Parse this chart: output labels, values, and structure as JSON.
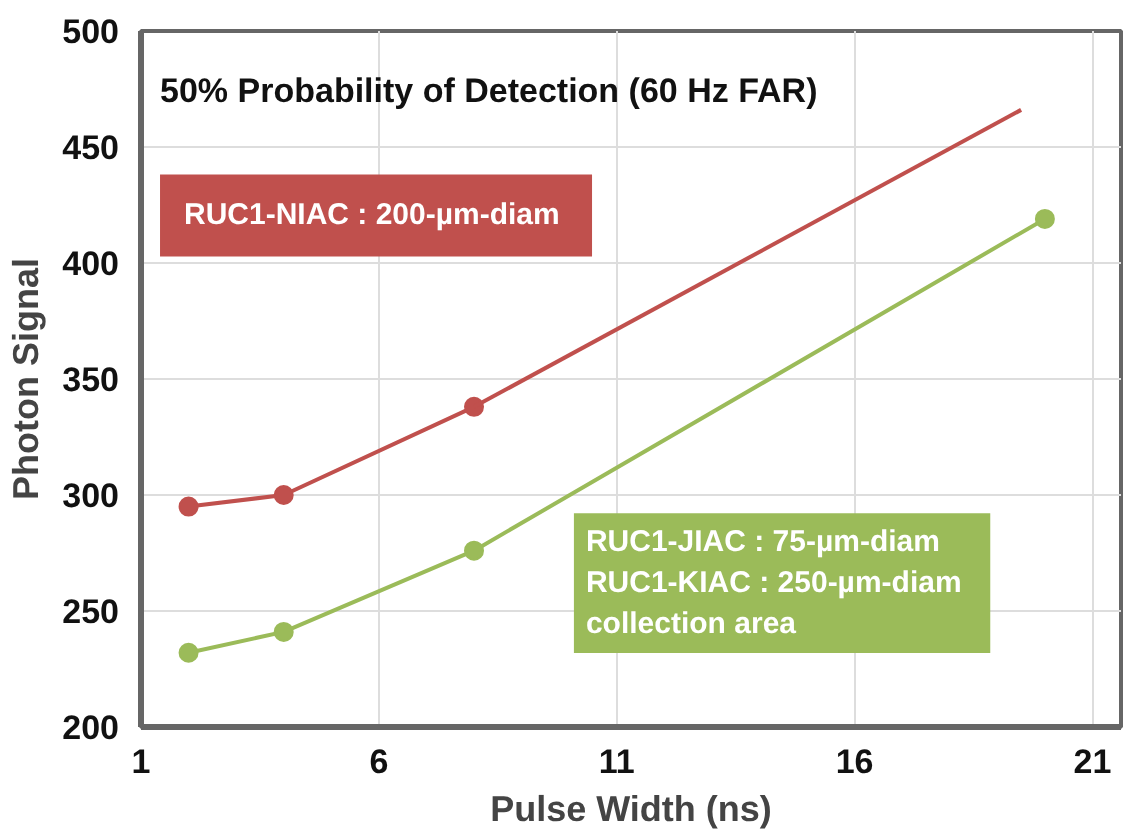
{
  "chart_data": {
    "type": "line",
    "title": "50% Probability of Detection (60 Hz FAR)",
    "xlabel": "Pulse Width (ns)",
    "ylabel": "Photon Signal",
    "xlim": [
      1,
      21.6
    ],
    "xticks": [
      1,
      6,
      11,
      16,
      21
    ],
    "ylim": [
      200,
      500
    ],
    "yticks": [
      200,
      250,
      300,
      350,
      400,
      450,
      500
    ],
    "grid": true,
    "marker": "circle",
    "line_style": "solid",
    "series": [
      {
        "color": "#c0504d",
        "x": [
          2,
          4,
          8
        ],
        "values": [
          295,
          300,
          338
        ]
      },
      {
        "color": "#c0504d",
        "x": [
          8,
          19.5
        ],
        "values": [
          338,
          466
        ],
        "marker": "none"
      },
      {
        "color": "#9bbb59",
        "x": [
          2,
          4,
          8,
          20
        ],
        "values": [
          232,
          241,
          276,
          419
        ]
      }
    ],
    "annotations": [
      "RUC1-NIAC :  200-µm-diam",
      "RUC1-JIAC :   75-µm-diam",
      "RUC1-KIAC :   250-µm-diam",
      "collection area"
    ]
  }
}
